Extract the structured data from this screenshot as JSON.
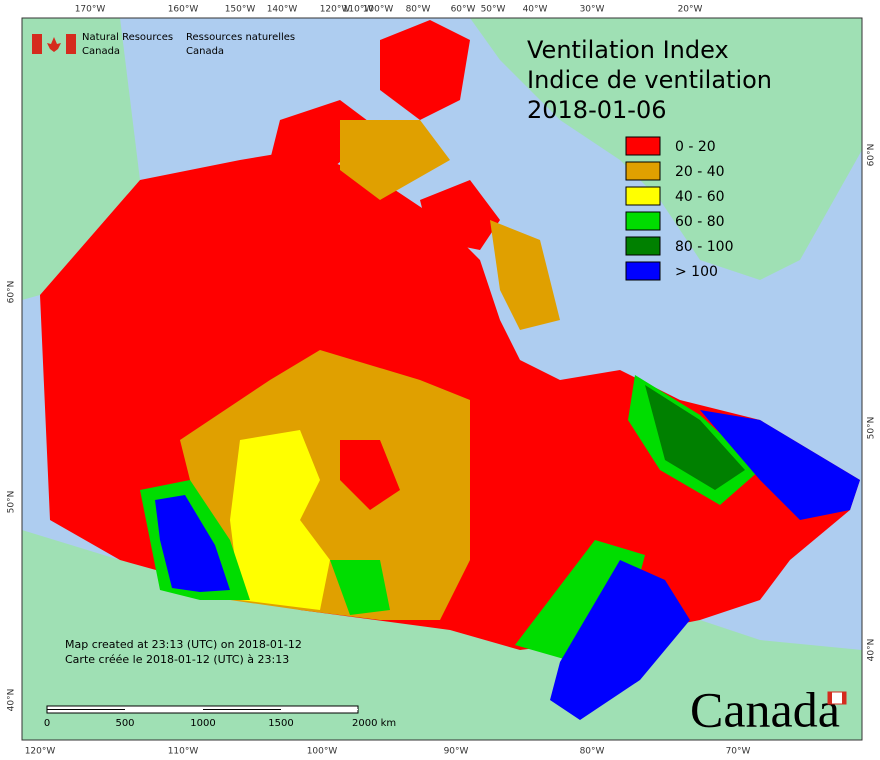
{
  "header": {
    "agency_en": [
      "Natural Resources",
      "Canada"
    ],
    "agency_fr": [
      "Ressources naturelles",
      "Canada"
    ]
  },
  "title": [
    "Ventilation Index",
    "Indice de ventilation",
    "2018-01-06"
  ],
  "legend": [
    {
      "label": "0 - 20",
      "color": "#ff0000"
    },
    {
      "label": "20 - 40",
      "color": "#e0a000"
    },
    {
      "label": "40 - 60",
      "color": "#ffff00"
    },
    {
      "label": "60 - 80",
      "color": "#00dd00"
    },
    {
      "label": "80 - 100",
      "color": "#008000"
    },
    {
      "label": "> 100",
      "color": "#0000ff"
    }
  ],
  "graticule": {
    "top": [
      "170°W",
      "160°W",
      "150°W",
      "140°W",
      "120°W",
      "110°W",
      "100°W",
      "80°W",
      "60°W",
      "50°W",
      "40°W",
      "30°W",
      "20°W"
    ],
    "bottom": [
      "120°W",
      "110°W",
      "100°W",
      "90°W",
      "80°W",
      "70°W"
    ],
    "left": [
      "60°N",
      "50°N",
      "40°N"
    ],
    "right": [
      "60°N",
      "50°N",
      "40°N"
    ]
  },
  "notes": [
    "Map created at 23:13 (UTC) on 2018-01-12",
    "Carte créée le 2018-01-12 (UTC) à 23:13"
  ],
  "scale_bar": {
    "labels": [
      "0",
      "500",
      "1000",
      "1500",
      "2000 km"
    ]
  },
  "wordmark": "Canada"
}
